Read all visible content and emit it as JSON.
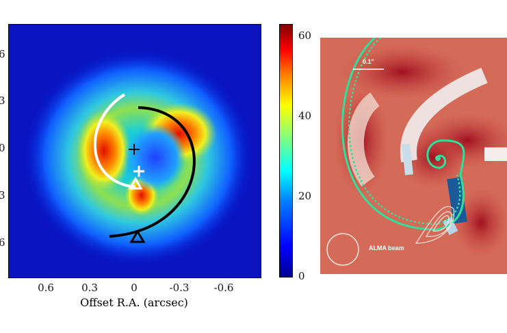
{
  "chart_data": [
    {
      "type": "heatmap",
      "title": "",
      "xlabel": "Offset R.A. (arcsec)",
      "x_ticks": [
        "0.6",
        "0.3",
        "0",
        "-0.3",
        "-0.6"
      ],
      "x_tick_values": [
        0.6,
        0.3,
        0,
        -0.3,
        -0.6
      ],
      "y_ticks_visible": [
        "6",
        "3",
        "0",
        "3",
        "6"
      ],
      "xlim": [
        0.9,
        -0.9
      ],
      "colorbar": {
        "ticks": [
          "60",
          "40",
          "20",
          "0"
        ],
        "tick_values": [
          60,
          40,
          20,
          0
        ],
        "range": [
          0,
          63
        ],
        "colormap": "jet"
      },
      "annotations": [
        "white spiral arc",
        "black spiral arc",
        "white cross",
        "black cross",
        "white triangle",
        "black triangle"
      ]
    },
    {
      "type": "heatmap",
      "colormap": "red-white-blue",
      "scale_bar_label": "0.1\"",
      "beam_label": "ALMA beam",
      "overlays": [
        "green solid spiral",
        "green dotted spiral",
        "white contours"
      ]
    }
  ]
}
